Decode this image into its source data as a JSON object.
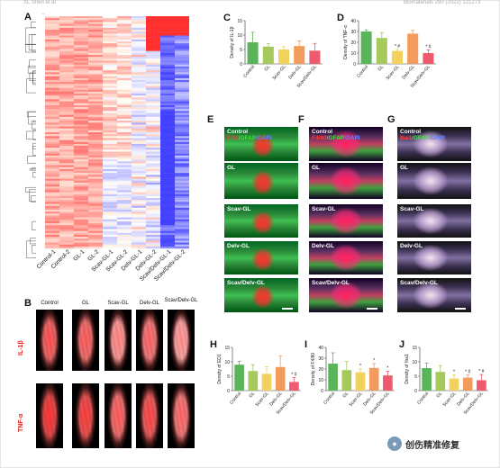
{
  "header": {
    "left": "XL Shen et al",
    "right": "Biomaterials 280 (2022) 121273"
  },
  "panels": {
    "A": "A",
    "B": "B",
    "C": "C",
    "D": "D",
    "E": "E",
    "F": "F",
    "G": "G",
    "H": "H",
    "I": "I",
    "J": "J"
  },
  "heatmap": {
    "samples": [
      "Control-1",
      "Control-2",
      "GL-1",
      "GL-2",
      "Scav-GL-1",
      "Scav-GL-2",
      "Delv-GL-1",
      "Delv-GL-2",
      "Scav/Delv-GL-1",
      "Scav/Delv-GL-2"
    ]
  },
  "panel_b": {
    "columns": [
      "Control",
      "GL",
      "Scav-GL",
      "Delv-GL",
      "Scav/Delv-GL"
    ],
    "rows": [
      "IL-1β",
      "TNF-α"
    ]
  },
  "stain_titles": {
    "E": [
      "ED1",
      "GFAP",
      "DAPI"
    ],
    "F": [
      "F4/80",
      "GFAP",
      "DAPI"
    ],
    "G": [
      "Iba1",
      "GFAP",
      "DAPI"
    ]
  },
  "stain_rows": [
    "Control",
    "GL",
    "Scav-GL",
    "Delv-GL",
    "Scav/Delv-GL"
  ],
  "colors": {
    "control": "#5ab55a",
    "gl": "#a5c95a",
    "scav": "#f2d15c",
    "delv": "#f39b5c",
    "scavdelv": "#ee5a6e"
  },
  "watermark": "创伤精准修复",
  "chart_data": [
    {
      "panel": "C",
      "type": "bar",
      "categories": [
        "Control",
        "GL",
        "Scav-GL",
        "Delv-GL",
        "Scav/Delv-GL"
      ],
      "values": [
        7.5,
        6.0,
        5.0,
        6.2,
        4.6
      ],
      "errors": [
        3.5,
        1.0,
        1.0,
        1.8,
        2.5
      ],
      "ylabel": "Density of IL-1β",
      "ylim": [
        0,
        15
      ],
      "yticks": [
        0,
        5,
        10,
        15
      ],
      "sig": [
        "",
        "",
        "",
        "",
        ""
      ]
    },
    {
      "panel": "D",
      "type": "bar",
      "categories": [
        "Control",
        "GL",
        "Scav-GL",
        "Delv-GL",
        "Scav/Delv-GL"
      ],
      "values": [
        30,
        24,
        12,
        28,
        10
      ],
      "errors": [
        1.5,
        5,
        1.5,
        3,
        3
      ],
      "ylabel": "Density of TNF-α",
      "ylim": [
        0,
        40
      ],
      "yticks": [
        0,
        10,
        20,
        30,
        40
      ],
      "sig": [
        "",
        "",
        "* #",
        "",
        "* #"
      ]
    },
    {
      "panel": "H",
      "type": "bar",
      "categories": [
        "Control",
        "GL",
        "Scav-GL",
        "Delv-GL",
        "Scav/Delv-GL"
      ],
      "values": [
        9.0,
        6.8,
        5.8,
        8.2,
        3.0
      ],
      "errors": [
        1.2,
        2.2,
        2.5,
        3.8,
        1.5
      ],
      "ylabel": "Density of ED1",
      "ylim": [
        0,
        15
      ],
      "yticks": [
        0,
        5,
        10,
        15
      ],
      "sig": [
        "",
        "",
        "",
        "",
        "* #"
      ]
    },
    {
      "panel": "I",
      "type": "bar",
      "categories": [
        "Control",
        "GL",
        "Scav-GL",
        "Delv-GL",
        "Scav/Delv-GL"
      ],
      "values": [
        25,
        19,
        17,
        21,
        14
      ],
      "errors": [
        10,
        8,
        3,
        4,
        4
      ],
      "ylabel": "Density of F4/80",
      "ylim": [
        0,
        40
      ],
      "yticks": [
        0,
        10,
        20,
        30,
        40
      ],
      "sig": [
        "",
        "",
        "*",
        "*",
        "*"
      ]
    },
    {
      "panel": "J",
      "type": "bar",
      "categories": [
        "Control",
        "GL",
        "Scav-GL",
        "Delv-GL",
        "Scav/Delv-GL"
      ],
      "values": [
        7.8,
        6.5,
        4.2,
        4.5,
        3.6
      ],
      "errors": [
        1.8,
        2.2,
        1.2,
        1.0,
        2.0
      ],
      "ylabel": "Density of Iba1",
      "ylim": [
        0,
        15
      ],
      "yticks": [
        0,
        5,
        10,
        15
      ],
      "sig": [
        "",
        "",
        "*",
        "* #",
        "* #"
      ]
    }
  ]
}
